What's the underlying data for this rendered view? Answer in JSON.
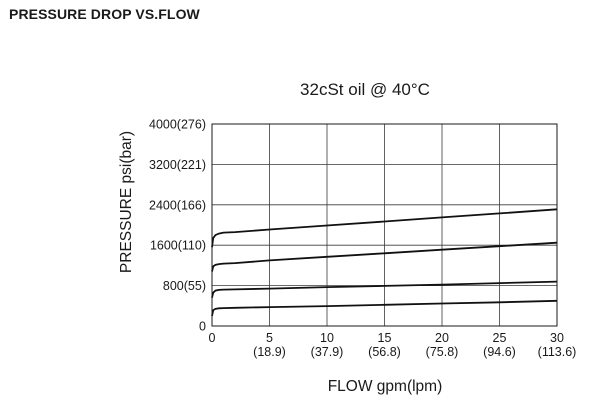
{
  "header": {
    "title": "PRESSURE DROP VS.FLOW"
  },
  "chart_data": {
    "type": "line",
    "title": "PRESSURE DROP VS.FLOW",
    "subtitle": "32cSt oil @ 40°C",
    "xlabel": "FLOW gpm(lpm)",
    "ylabel": "PRESSURE psi(bar)",
    "xlim": [
      0,
      30
    ],
    "ylim": [
      0,
      4000
    ],
    "grid": true,
    "x_ticks": [
      {
        "value": 0,
        "primary": "0",
        "secondary": ""
      },
      {
        "value": 5,
        "primary": "5",
        "secondary": "(18.9)"
      },
      {
        "value": 10,
        "primary": "10",
        "secondary": "(37.9)"
      },
      {
        "value": 15,
        "primary": "15",
        "secondary": "(56.8)"
      },
      {
        "value": 20,
        "primary": "20",
        "secondary": "(75.8)"
      },
      {
        "value": 25,
        "primary": "25",
        "secondary": "(94.6)"
      },
      {
        "value": 30,
        "primary": "30",
        "secondary": "(113.6)"
      }
    ],
    "y_ticks": [
      {
        "value": 0,
        "label": "0"
      },
      {
        "value": 800,
        "label": "800(55)"
      },
      {
        "value": 1600,
        "label": "1600(110)"
      },
      {
        "value": 2400,
        "label": "2400(166)"
      },
      {
        "value": 3200,
        "label": "3200(221)"
      },
      {
        "value": 4000,
        "label": "4000(276)"
      }
    ],
    "series": [
      {
        "x": [
          0,
          0.1,
          0.3,
          0.6,
          1.0,
          2,
          5,
          10,
          15,
          20,
          25,
          30
        ],
        "y": [
          1560,
          1740,
          1800,
          1830,
          1850,
          1860,
          1910,
          1990,
          2070,
          2150,
          2230,
          2310
        ]
      },
      {
        "x": [
          0,
          0.1,
          0.3,
          0.6,
          1.0,
          2,
          5,
          10,
          15,
          20,
          25,
          30
        ],
        "y": [
          1080,
          1180,
          1210,
          1225,
          1235,
          1245,
          1300,
          1370,
          1440,
          1510,
          1580,
          1650
        ]
      },
      {
        "x": [
          0,
          0.1,
          0.3,
          0.6,
          1.0,
          2,
          5,
          10,
          15,
          20,
          25,
          30
        ],
        "y": [
          560,
          660,
          700,
          715,
          720,
          725,
          740,
          770,
          795,
          820,
          850,
          880
        ]
      },
      {
        "x": [
          0,
          0.1,
          0.3,
          0.6,
          1.0,
          2,
          5,
          10,
          15,
          20,
          25,
          30
        ],
        "y": [
          200,
          310,
          340,
          350,
          355,
          360,
          375,
          395,
          420,
          445,
          470,
          500
        ]
      }
    ]
  }
}
